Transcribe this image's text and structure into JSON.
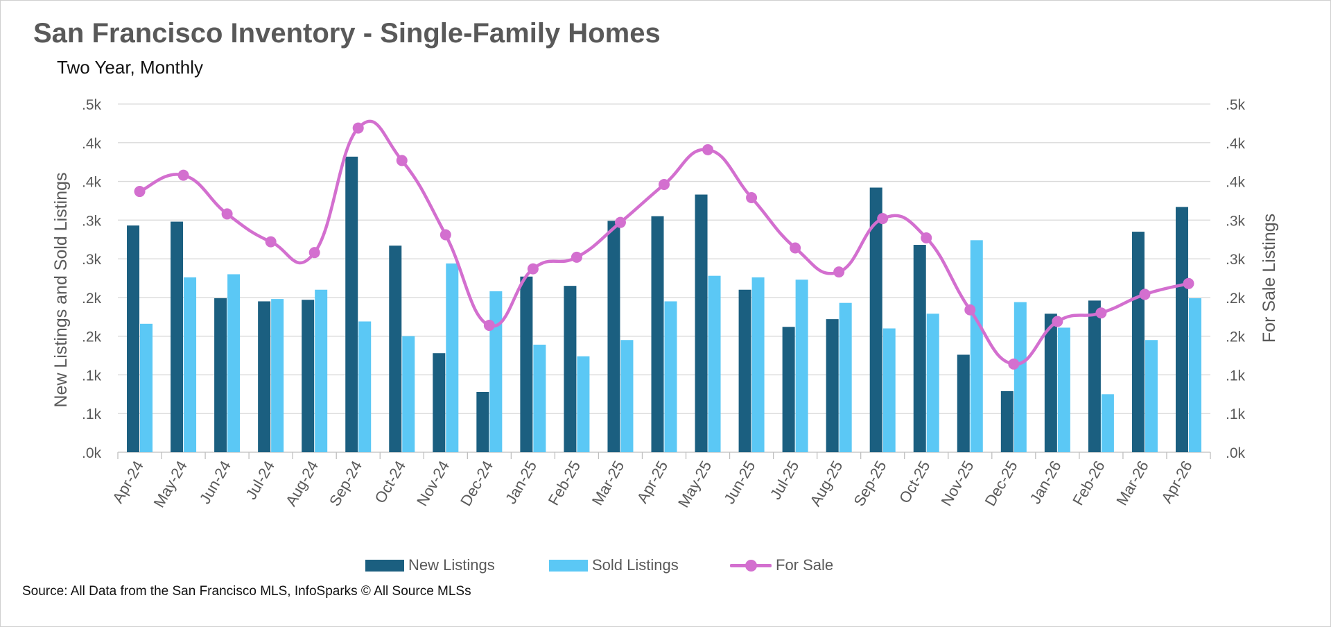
{
  "chart_data": {
    "type": "bar",
    "title": "San Francisco Inventory - Single-Family Homes",
    "subtitle": "Two Year, Monthly",
    "ylabel": "New Listings and Sold Listings",
    "ylabel_right": "For Sale Listings",
    "ylim": [
      0,
      450
    ],
    "ylim_right": [
      0,
      450
    ],
    "y_ticks": [
      ".0k",
      ".1k",
      ".1k",
      ".2k",
      ".2k",
      ".3k",
      ".3k",
      ".4k",
      ".4k",
      ".5k"
    ],
    "y_ticks_right": [
      ".0k",
      ".1k",
      ".1k",
      ".2k",
      ".2k",
      ".3k",
      ".3k",
      ".4k",
      ".4k",
      ".5k"
    ],
    "grid": true,
    "legend_position": "bottom",
    "categories": [
      "Apr-24",
      "May-24",
      "Jun-24",
      "Jul-24",
      "Aug-24",
      "Sep-24",
      "Oct-24",
      "Nov-24",
      "Dec-24",
      "Jan-25",
      "Feb-25",
      "Mar-25",
      "Apr-25",
      "May-25",
      "Jun-25",
      "Jul-25",
      "Aug-25",
      "Sep-25",
      "Oct-25",
      "Nov-25",
      "Dec-25",
      "Jan-26",
      "Feb-26",
      "Mar-26",
      "Apr-26"
    ],
    "series": [
      {
        "name": "New Listings",
        "type": "bar",
        "color": "#1b5f80",
        "values": [
          293,
          298,
          199,
          195,
          197,
          382,
          267,
          128,
          78,
          227,
          215,
          299,
          305,
          333,
          210,
          162,
          172,
          342,
          268,
          126,
          79,
          179,
          196,
          285,
          317
        ]
      },
      {
        "name": "Sold Listings",
        "type": "bar",
        "color": "#5bc8f5",
        "values": [
          166,
          226,
          230,
          198,
          210,
          169,
          150,
          244,
          208,
          139,
          124,
          145,
          195,
          228,
          226,
          223,
          193,
          160,
          179,
          274,
          194,
          161,
          75,
          145,
          199
        ]
      },
      {
        "name": "For Sale",
        "type": "line",
        "color": "#d36fcf",
        "axis": "right",
        "values": [
          337,
          358,
          308,
          272,
          258,
          419,
          377,
          281,
          164,
          237,
          252,
          297,
          346,
          391,
          329,
          264,
          233,
          302,
          277,
          184,
          114,
          169,
          180,
          204,
          218
        ]
      }
    ]
  },
  "source": "Source: All Data from the San Francisco MLS, InfoSparks © All Source MLSs"
}
